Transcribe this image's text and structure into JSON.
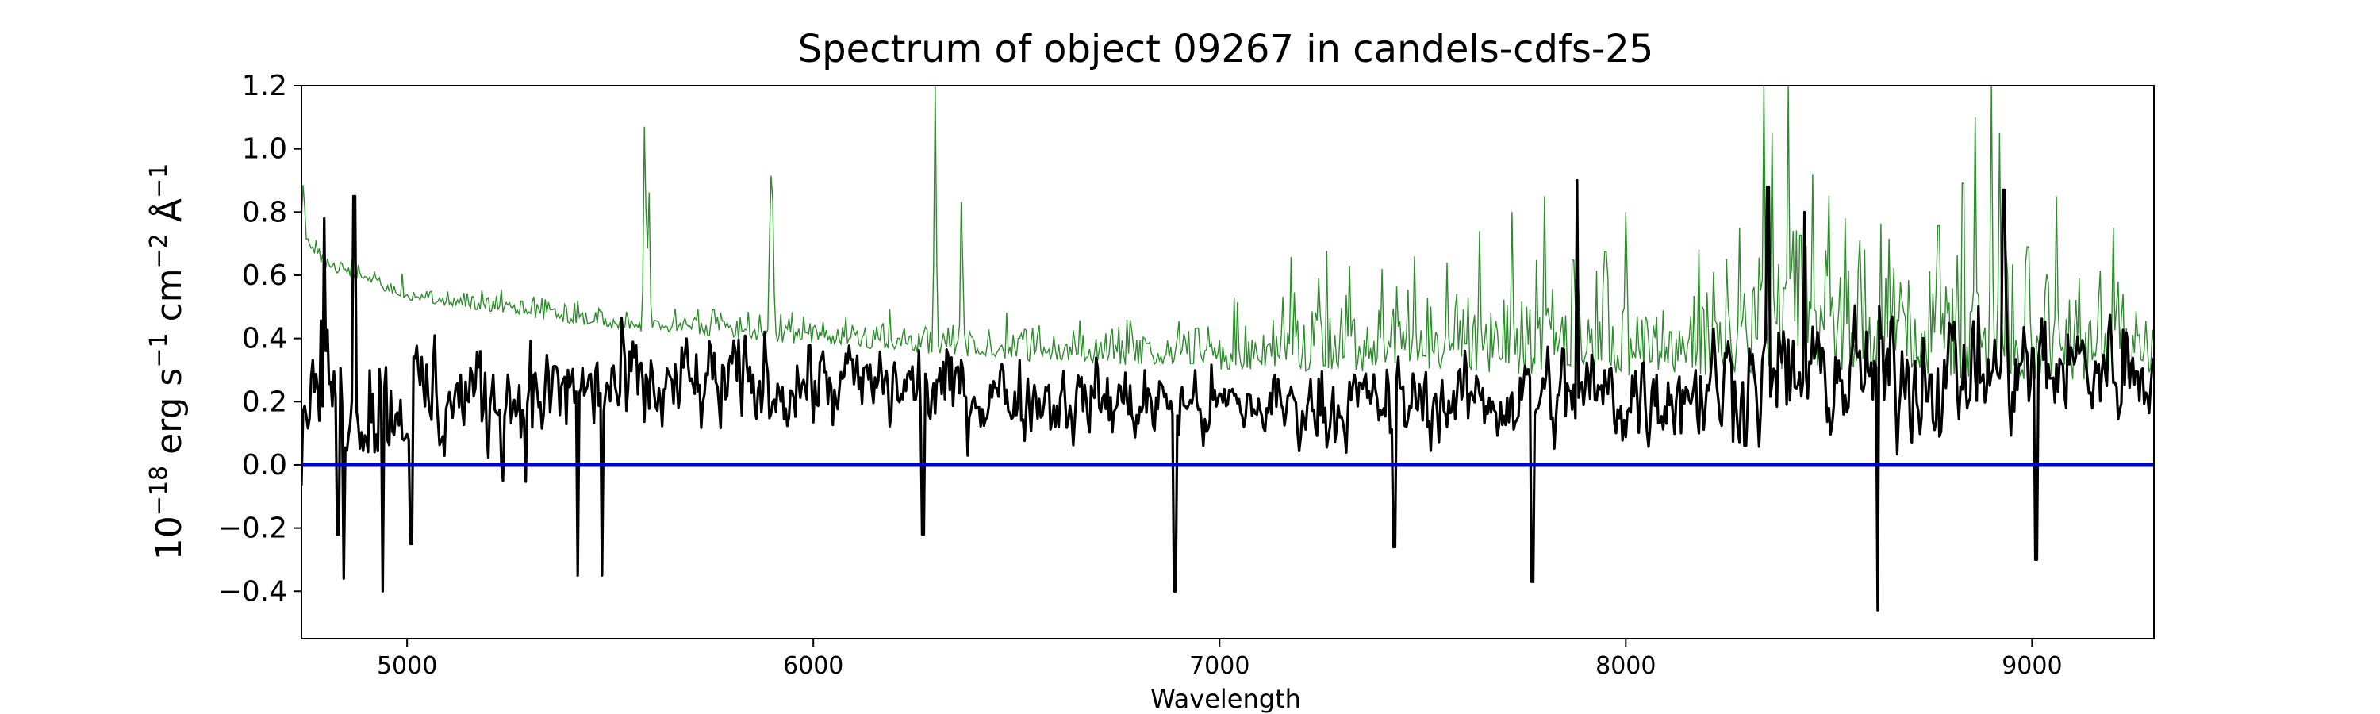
{
  "chart_data": {
    "type": "line",
    "title": "Spectrum of object 09267 in candels-cdfs-25",
    "xlabel": "Wavelength",
    "ylabel": {
      "base": "10",
      "exp": "−18",
      "rest": " erg s",
      "s_exp": "−1",
      "cm": " cm",
      "cm_exp": "−2",
      "unit": " Å",
      "unit_exp": "−1"
    },
    "xlim": [
      4740,
      9300
    ],
    "ylim": [
      -0.55,
      1.2
    ],
    "x_ticks": [
      5000,
      6000,
      7000,
      8000,
      9000
    ],
    "x_tick_labels": [
      "5000",
      "6000",
      "7000",
      "8000",
      "9000"
    ],
    "y_ticks": [
      -0.4,
      -0.2,
      0.0,
      0.2,
      0.4,
      0.6,
      0.8,
      1.0,
      1.2
    ],
    "y_tick_labels": [
      "−0.4",
      "−0.2",
      "0.0",
      "0.2",
      "0.4",
      "0.6",
      "0.8",
      "1.0",
      "1.2"
    ],
    "grid": false,
    "series": [
      {
        "role": "uncertainty",
        "color": "#2e8b2e",
        "continuum": [
          [
            4740,
            0.72
          ],
          [
            4800,
            0.62
          ],
          [
            5000,
            0.52
          ],
          [
            5500,
            0.43
          ],
          [
            6000,
            0.38
          ],
          [
            6500,
            0.33
          ],
          [
            7000,
            0.3
          ],
          [
            7500,
            0.29
          ],
          [
            8000,
            0.28
          ],
          [
            8500,
            0.28
          ],
          [
            9000,
            0.27
          ],
          [
            9300,
            0.26
          ]
        ],
        "spikes": [
          [
            4745,
            0.92
          ],
          [
            5585,
            1.2
          ],
          [
            5595,
            0.95
          ],
          [
            5895,
            1.02
          ],
          [
            5900,
            0.84
          ],
          [
            6300,
            1.2
          ],
          [
            6365,
            0.93
          ],
          [
            7245,
            0.65
          ],
          [
            7320,
            0.63
          ],
          [
            7400,
            0.62
          ],
          [
            7480,
            0.66
          ],
          [
            7560,
            0.64
          ],
          [
            7640,
            0.74
          ],
          [
            7720,
            0.8
          ],
          [
            7800,
            0.85
          ],
          [
            7870,
            0.83
          ],
          [
            7950,
            0.87
          ],
          [
            8000,
            0.8
          ],
          [
            8280,
            0.75
          ],
          [
            8340,
            1.2
          ],
          [
            8360,
            1.05
          ],
          [
            8400,
            1.2
          ],
          [
            8430,
            0.95
          ],
          [
            8460,
            0.92
          ],
          [
            8500,
            0.85
          ],
          [
            8540,
            0.78
          ],
          [
            8770,
            1.0
          ],
          [
            8830,
            1.2
          ],
          [
            8860,
            1.1
          ],
          [
            8900,
            1.2
          ],
          [
            8920,
            1.05
          ],
          [
            8990,
            0.9
          ],
          [
            9060,
            0.85
          ],
          [
            9200,
            0.75
          ]
        ],
        "noise_band": [
          [
            4740,
            0.05
          ],
          [
            5500,
            0.05
          ],
          [
            6000,
            0.08
          ],
          [
            7000,
            0.12
          ],
          [
            7200,
            0.22
          ],
          [
            8000,
            0.25
          ],
          [
            8250,
            0.3
          ],
          [
            8600,
            0.35
          ],
          [
            9000,
            0.3
          ],
          [
            9300,
            0.2
          ]
        ]
      },
      {
        "role": "flux",
        "color": "#000000",
        "level": [
          [
            4740,
            0.25
          ],
          [
            5000,
            0.2
          ],
          [
            6000,
            0.26
          ],
          [
            7000,
            0.18
          ],
          [
            7500,
            0.2
          ],
          [
            8000,
            0.22
          ],
          [
            8300,
            0.27
          ],
          [
            8600,
            0.28
          ],
          [
            9000,
            0.3
          ],
          [
            9300,
            0.32
          ]
        ],
        "scatter": [
          [
            4740,
            0.3
          ],
          [
            5000,
            0.3
          ],
          [
            6000,
            0.22
          ],
          [
            7000,
            0.18
          ],
          [
            7500,
            0.2
          ],
          [
            8300,
            0.28
          ],
          [
            8800,
            0.3
          ],
          [
            9300,
            0.25
          ]
        ],
        "features": [
          [
            4795,
            0.78
          ],
          [
            4830,
            -0.22
          ],
          [
            4845,
            -0.36
          ],
          [
            4870,
            0.85
          ],
          [
            4940,
            -0.4
          ],
          [
            5010,
            -0.25
          ],
          [
            5420,
            -0.35
          ],
          [
            5480,
            -0.35
          ],
          [
            6270,
            -0.22
          ],
          [
            6890,
            -0.4
          ],
          [
            7430,
            -0.26
          ],
          [
            7770,
            -0.37
          ],
          [
            7880,
            0.9
          ],
          [
            8350,
            0.88
          ],
          [
            8620,
            -0.46
          ],
          [
            9010,
            -0.3
          ],
          [
            8930,
            0.87
          ],
          [
            8440,
            0.8
          ]
        ]
      },
      {
        "role": "zero",
        "color": "#0000cd",
        "points": [
          [
            4740,
            0.0
          ],
          [
            9300,
            0.0
          ]
        ]
      }
    ]
  }
}
